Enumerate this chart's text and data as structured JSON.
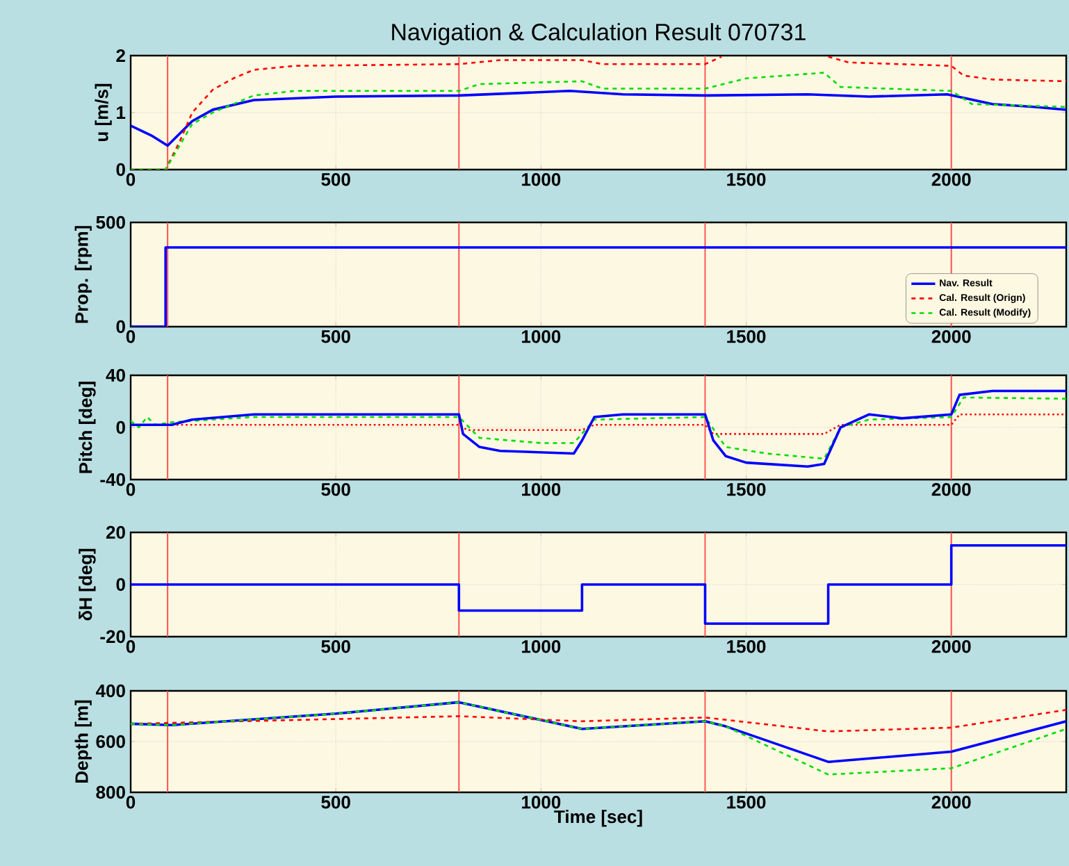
{
  "chart_data": [
    {
      "type": "line",
      "title": "Navigation & Calculation Result 070731",
      "ylabel": "u [m/s]",
      "xlim": [
        0,
        2280
      ],
      "ylim": [
        0,
        2
      ],
      "xticks": [
        0,
        500,
        1000,
        1500,
        2000
      ],
      "yticks": [
        0,
        1,
        2
      ],
      "grid": true,
      "ref_lines": [
        {
          "axis": "x",
          "value": 90,
          "color": "#ff5050"
        },
        {
          "axis": "x",
          "value": 800,
          "color": "#ff5050"
        },
        {
          "axis": "x",
          "value": 1400,
          "color": "#ff5050"
        },
        {
          "axis": "x",
          "value": 2000,
          "color": "#ff5050"
        }
      ],
      "series": [
        {
          "color": "#0000ff",
          "line_style": "solid",
          "x": [
            0,
            50,
            90,
            150,
            200,
            300,
            500,
            800,
            1070,
            1200,
            1400,
            1650,
            1800,
            1990,
            2100,
            2200,
            2280
          ],
          "values": [
            0.77,
            0.6,
            0.42,
            0.85,
            1.05,
            1.22,
            1.28,
            1.3,
            1.38,
            1.32,
            1.3,
            1.32,
            1.28,
            1.32,
            1.15,
            1.1,
            1.05
          ]
        },
        {
          "color": "#ff0000",
          "line_style": "dashed",
          "x": [
            0,
            85,
            120,
            150,
            200,
            250,
            300,
            400,
            800,
            900,
            1100,
            1150,
            1400,
            1440,
            1500,
            1600,
            1700,
            1750,
            2000,
            2030,
            2100,
            2280
          ],
          "values": [
            0,
            0,
            0.5,
            1.0,
            1.4,
            1.6,
            1.75,
            1.82,
            1.85,
            1.92,
            1.92,
            1.85,
            1.85,
            1.98,
            null,
            null,
            1.98,
            1.88,
            1.82,
            1.65,
            1.58,
            1.55
          ]
        },
        {
          "color": "#00dd00",
          "line_style": "dashed",
          "x": [
            0,
            85,
            150,
            200,
            300,
            400,
            800,
            850,
            1100,
            1150,
            1400,
            1500,
            1690,
            1730,
            2000,
            2050,
            2280
          ],
          "values": [
            0,
            0,
            0.8,
            1.0,
            1.3,
            1.38,
            1.38,
            1.5,
            1.55,
            1.42,
            1.42,
            1.6,
            1.7,
            1.45,
            1.38,
            1.15,
            1.1
          ]
        }
      ]
    },
    {
      "type": "line",
      "ylabel": "Prop. [rpm]",
      "xlim": [
        0,
        2280
      ],
      "ylim": [
        0,
        500
      ],
      "xticks": [
        0,
        500,
        1000,
        1500,
        2000
      ],
      "yticks": [
        0,
        500
      ],
      "grid": true,
      "legend": "bottom right",
      "ref_lines": [
        {
          "axis": "x",
          "value": 90,
          "color": "#ff5050"
        },
        {
          "axis": "x",
          "value": 800,
          "color": "#ff5050"
        },
        {
          "axis": "x",
          "value": 1400,
          "color": "#ff5050"
        },
        {
          "axis": "x",
          "value": 2000,
          "color": "#ff5050"
        }
      ],
      "series": [
        {
          "name": "Nav. Result",
          "color": "#0000ff",
          "line_style": "solid",
          "x": [
            0,
            85,
            85,
            2280
          ],
          "values": [
            0,
            0,
            380,
            380
          ]
        },
        {
          "name": "Cal. Result (Orign)",
          "color": "#ff0000",
          "line_style": "dashed"
        },
        {
          "name": "Cal. Result (Modify)",
          "color": "#00dd00",
          "line_style": "dashed"
        }
      ]
    },
    {
      "type": "line",
      "ylabel": "Pitch [deg]",
      "xlim": [
        0,
        2280
      ],
      "ylim": [
        -40,
        40
      ],
      "xticks": [
        0,
        500,
        1000,
        1500,
        2000
      ],
      "yticks": [
        -40,
        0,
        40
      ],
      "grid": true,
      "ref_lines": [
        {
          "axis": "x",
          "value": 90,
          "color": "#ff5050"
        },
        {
          "axis": "x",
          "value": 800,
          "color": "#ff5050"
        },
        {
          "axis": "x",
          "value": 1400,
          "color": "#ff5050"
        },
        {
          "axis": "x",
          "value": 2000,
          "color": "#ff5050"
        }
      ],
      "series": [
        {
          "color": "#ff0000",
          "line_style": "dotted",
          "x": [
            0,
            800,
            820,
            1100,
            1130,
            1400,
            1420,
            1690,
            1730,
            2000,
            2020,
            2280
          ],
          "values": [
            2,
            2,
            -2,
            -2,
            2,
            2,
            -5,
            -5,
            2,
            2,
            10,
            10
          ]
        },
        {
          "color": "#00dd00",
          "line_style": "dashed",
          "x": [
            0,
            20,
            40,
            60,
            100,
            300,
            800,
            850,
            1000,
            1080,
            1130,
            1400,
            1450,
            1550,
            1690,
            1730,
            1800,
            2000,
            2030,
            2280
          ],
          "values": [
            5,
            0,
            8,
            2,
            4,
            8,
            8,
            -8,
            -12,
            -12,
            6,
            8,
            -15,
            -20,
            -24,
            0,
            6,
            8,
            23,
            22
          ]
        },
        {
          "color": "#0000ff",
          "line_style": "solid",
          "x": [
            0,
            100,
            150,
            300,
            800,
            810,
            850,
            900,
            1080,
            1100,
            1130,
            1200,
            1400,
            1420,
            1450,
            1500,
            1650,
            1690,
            1730,
            1800,
            1880,
            2000,
            2020,
            2100,
            2280
          ],
          "values": [
            2,
            2,
            6,
            10,
            10,
            -5,
            -15,
            -18,
            -20,
            -10,
            8,
            10,
            10,
            -10,
            -22,
            -27,
            -30,
            -28,
            0,
            10,
            7,
            10,
            25,
            28,
            28
          ]
        }
      ]
    },
    {
      "type": "line",
      "ylabel": "δH [deg]",
      "xlim": [
        0,
        2280
      ],
      "ylim": [
        -20,
        20
      ],
      "xticks": [
        0,
        500,
        1000,
        1500,
        2000
      ],
      "yticks": [
        -20,
        0,
        20
      ],
      "grid": true,
      "ref_lines": [
        {
          "axis": "x",
          "value": 90,
          "color": "#ff5050"
        },
        {
          "axis": "x",
          "value": 800,
          "color": "#ff5050"
        },
        {
          "axis": "x",
          "value": 1400,
          "color": "#ff5050"
        },
        {
          "axis": "x",
          "value": 2000,
          "color": "#ff5050"
        }
      ],
      "series": [
        {
          "color": "#0000ff",
          "line_style": "solid",
          "x": [
            0,
            800,
            800,
            1100,
            1100,
            1400,
            1400,
            1700,
            1700,
            2000,
            2000,
            2280
          ],
          "values": [
            0,
            0,
            -10,
            -10,
            0,
            0,
            -15,
            -15,
            0,
            0,
            15,
            15
          ]
        }
      ]
    },
    {
      "type": "line",
      "xlabel": "Time [sec]",
      "ylabel": "Depth [m]",
      "xlim": [
        0,
        2280
      ],
      "ylim": [
        800,
        400
      ],
      "xticks": [
        0,
        500,
        1000,
        1500,
        2000
      ],
      "yticks": [
        400,
        600,
        800
      ],
      "grid": true,
      "ref_lines": [
        {
          "axis": "x",
          "value": 90,
          "color": "#ff5050"
        },
        {
          "axis": "x",
          "value": 800,
          "color": "#ff5050"
        },
        {
          "axis": "x",
          "value": 1400,
          "color": "#ff5050"
        },
        {
          "axis": "x",
          "value": 2000,
          "color": "#ff5050"
        }
      ],
      "series": [
        {
          "color": "#0000ff",
          "line_style": "solid",
          "x": [
            0,
            100,
            500,
            800,
            1100,
            1400,
            1450,
            1700,
            2000,
            2280
          ],
          "values": [
            530,
            535,
            490,
            445,
            550,
            520,
            540,
            680,
            640,
            520
          ]
        },
        {
          "color": "#ff0000",
          "line_style": "dashed",
          "x": [
            0,
            400,
            800,
            1100,
            1400,
            1700,
            2000,
            2280
          ],
          "values": [
            530,
            515,
            500,
            520,
            505,
            560,
            545,
            475
          ]
        },
        {
          "color": "#00dd00",
          "line_style": "dashed",
          "x": [
            0,
            100,
            500,
            800,
            1100,
            1400,
            1450,
            1700,
            2000,
            2280
          ],
          "values": [
            530,
            535,
            490,
            445,
            550,
            520,
            540,
            730,
            705,
            550
          ]
        }
      ]
    }
  ]
}
